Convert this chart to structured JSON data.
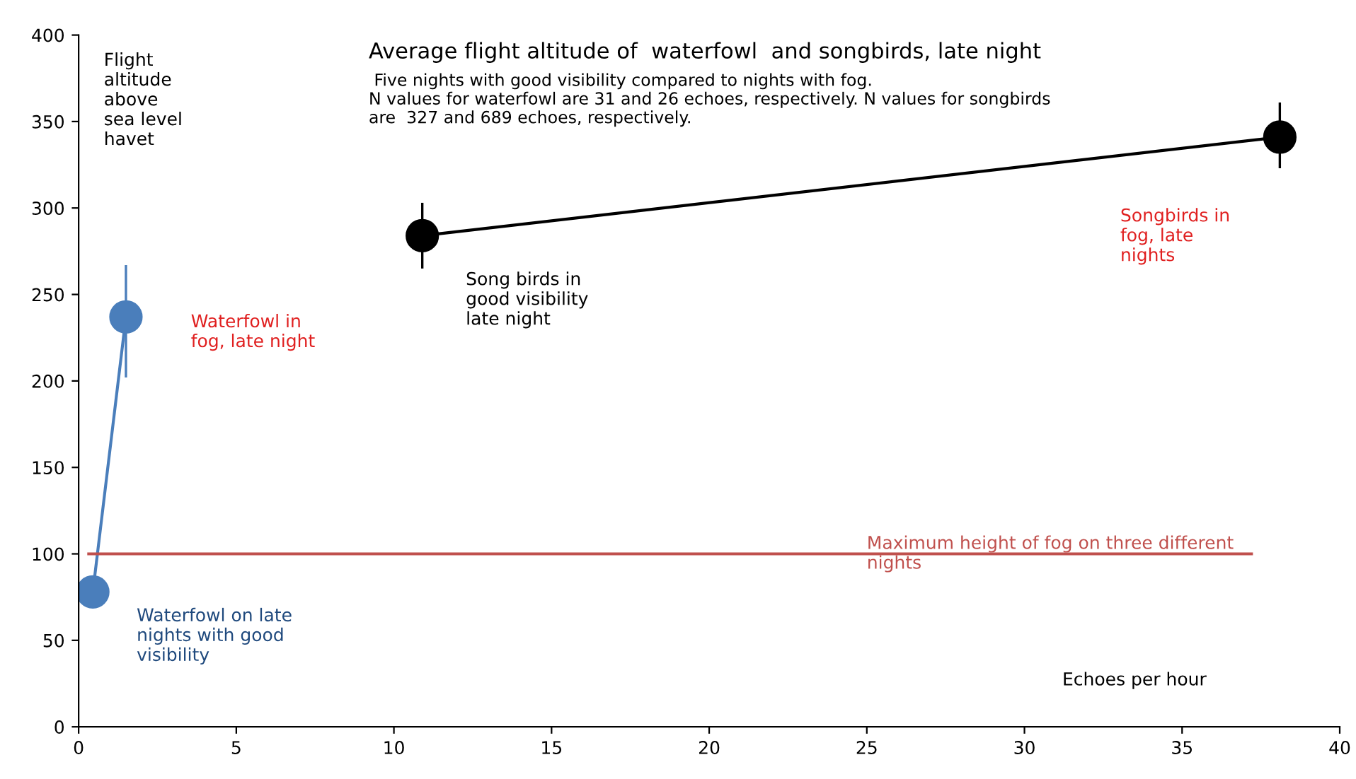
{
  "chart_data": {
    "type": "line",
    "title": "Average flight altitude of  waterfowl  and songbirds, late night",
    "subtitle": " Five nights with good visibility compared to nights with fog.\nN values for waterfowl are 31 and 26 echoes, respectively. N values for songbirds\nare  327 and 689 echoes, respectively.",
    "xlabel": "Echoes per hour",
    "ylabel": "Flight\naltitude\nabove\nsea level\nhavet",
    "series": [
      {
        "color": "#4a7ebb",
        "x": [
          0.45,
          1.5
        ],
        "values": [
          78,
          237
        ],
        "errors": [
          null,
          [
            202,
            267
          ]
        ]
      },
      {
        "color": "#000000",
        "x": [
          10.9,
          38.1
        ],
        "values": [
          284,
          341
        ],
        "errors": [
          [
            265,
            303
          ],
          [
            323,
            361
          ]
        ]
      }
    ],
    "annotations": [
      "Waterfowl on late\nnights with good\nvisibility",
      "Waterfowl in\nfog, late night",
      "Song birds in\ngood visibility\nlate night",
      "Songbirds in\nfog, late\nnights"
    ],
    "ref_lines": [
      {
        "axis": "y",
        "value": 100,
        "label": "Maximum height of fog on three different\nnights",
        "color": "#c0504d"
      }
    ],
    "xlim": [
      0,
      40
    ],
    "xticks": [
      0,
      5,
      10,
      15,
      20,
      25,
      30,
      35,
      40
    ],
    "ylim": [
      0,
      400
    ],
    "yticks": [
      0,
      50,
      100,
      150,
      200,
      250,
      300,
      350,
      400
    ],
    "marker": "circle",
    "line_style": "solid",
    "grid": false,
    "legend": false
  }
}
